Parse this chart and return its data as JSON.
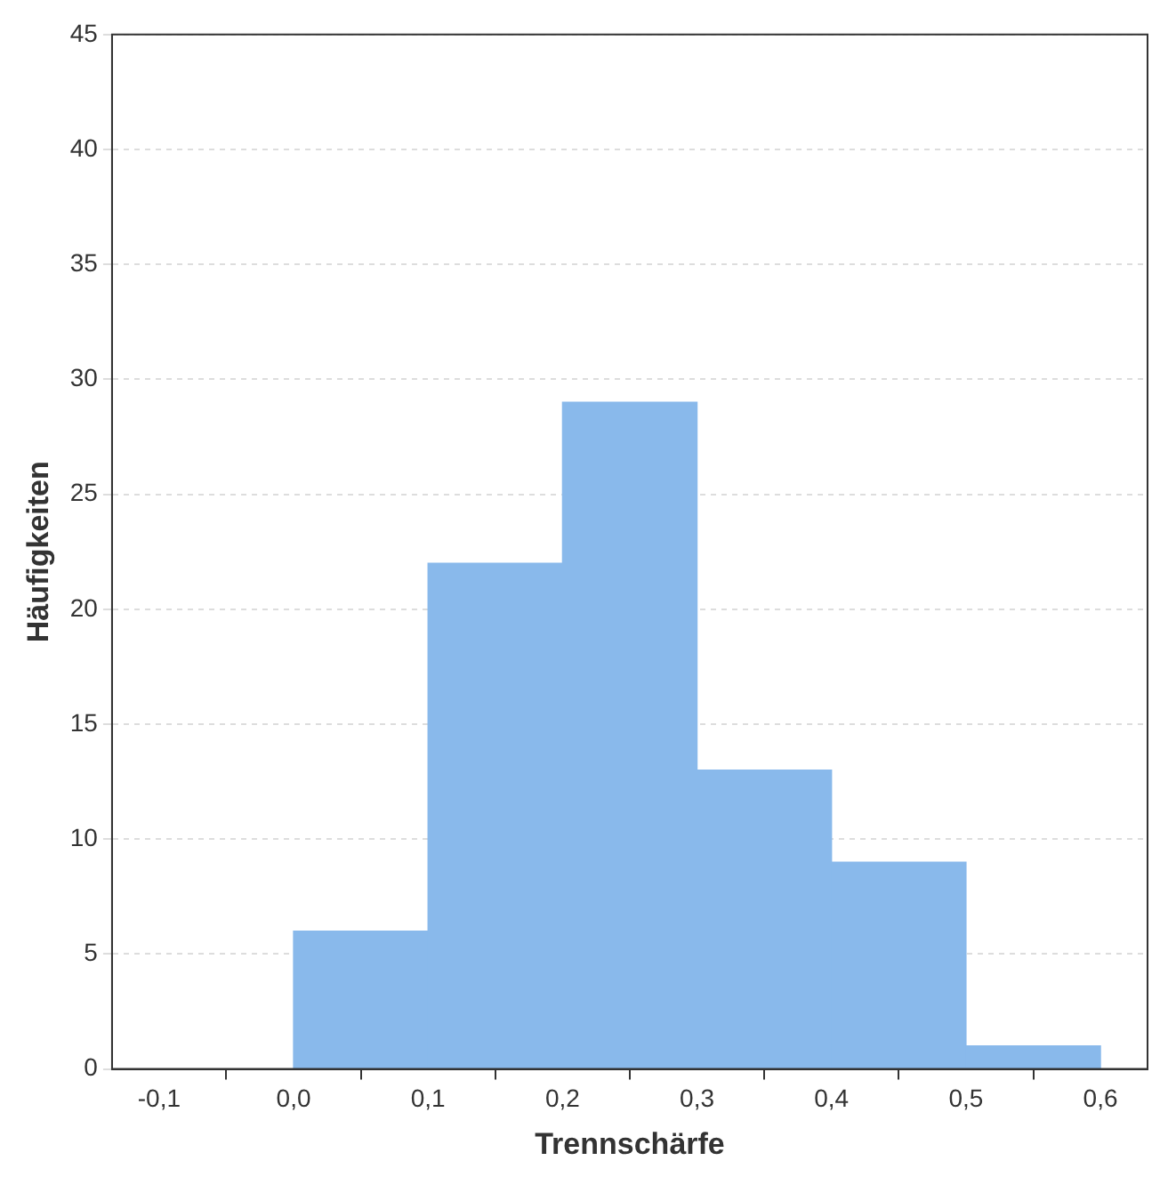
{
  "chart_data": {
    "type": "histogram",
    "xlabel": "Trennschärfe",
    "ylabel": "Häufigkeiten",
    "bins": [
      0.0,
      0.1,
      0.2,
      0.3,
      0.4,
      0.5,
      0.6
    ],
    "values": [
      6,
      22,
      29,
      13,
      9,
      1
    ],
    "color": "#89b9eb",
    "xlim": [
      -0.135,
      0.635
    ],
    "xticks": [
      {
        "value": -0.1,
        "label": "-0,1"
      },
      {
        "value": 0.0,
        "label": "0,0"
      },
      {
        "value": 0.1,
        "label": "0,1"
      },
      {
        "value": 0.2,
        "label": "0,2"
      },
      {
        "value": 0.3,
        "label": "0,3"
      },
      {
        "value": 0.4,
        "label": "0,4"
      },
      {
        "value": 0.5,
        "label": "0,5"
      },
      {
        "value": 0.6,
        "label": "0,6"
      }
    ],
    "ylim": [
      0,
      45
    ],
    "yticks": [
      0,
      5,
      10,
      15,
      20,
      25,
      30,
      35,
      40,
      45
    ],
    "grid": "y"
  }
}
